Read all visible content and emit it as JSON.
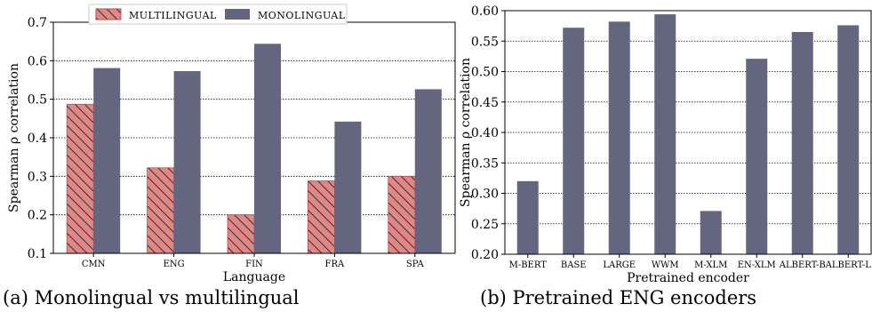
{
  "chart_data": [
    {
      "type": "bar",
      "categories": [
        "CMN",
        "ENG",
        "FIN",
        "FRA",
        "SPA"
      ],
      "series": [
        {
          "name": "MULTILINGUAL",
          "values": [
            0.487,
            0.322,
            0.2,
            0.288,
            0.3
          ],
          "color": "#e08888",
          "hatch": true
        },
        {
          "name": "MONOLINGUAL",
          "values": [
            0.581,
            0.573,
            0.644,
            0.442,
            0.526
          ],
          "color": "#646680"
        }
      ],
      "xlabel": "Language",
      "ylabel": "Spearman ρ correlation",
      "ylim": [
        0.1,
        0.7
      ],
      "yticks": [
        "0.1",
        "0.2",
        "0.3",
        "0.4",
        "0.5",
        "0.6",
        "0.7"
      ],
      "grid": "horizontal dotted",
      "legend": "top-center",
      "caption": "(a) Monolingual vs multilingual"
    },
    {
      "type": "bar",
      "categories": [
        "M-BERT",
        "BASE",
        "LARGE",
        "WWM",
        "M-XLM",
        "EN-XLM",
        "ALBERT-B",
        "ALBERT-L"
      ],
      "series": [
        {
          "values": [
            0.32,
            0.572,
            0.582,
            0.594,
            0.271,
            0.521,
            0.565,
            0.576
          ],
          "color": "#646680"
        }
      ],
      "xlabel": "Pretrained encoder",
      "ylabel": "Spearman ρ correlation",
      "ylim": [
        0.2,
        0.6
      ],
      "yticks": [
        "0.20",
        "0.25",
        "0.30",
        "0.35",
        "0.40",
        "0.45",
        "0.50",
        "0.55",
        "0.60"
      ],
      "grid": "horizontal dotted",
      "caption": "(b) Pretrained ENG encoders"
    }
  ]
}
